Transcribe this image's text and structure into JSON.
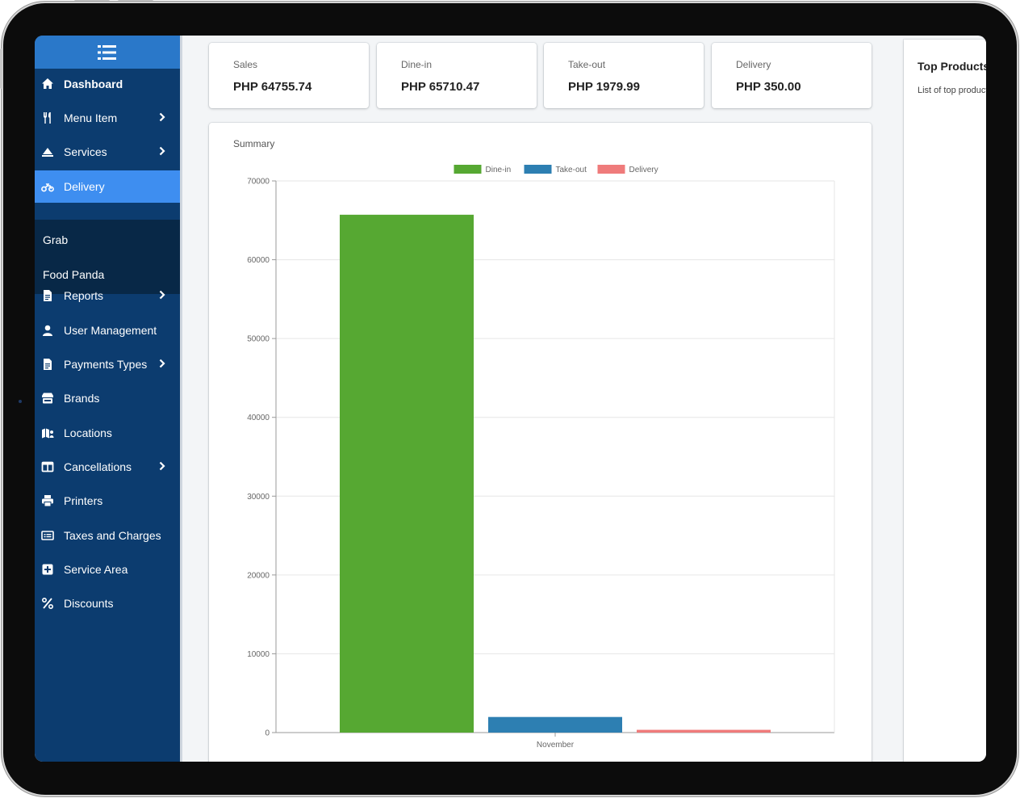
{
  "sidebar": {
    "items": [
      {
        "label": "Dashboard",
        "icon": "home-icon"
      },
      {
        "label": "Menu Item",
        "icon": "utensils-icon"
      },
      {
        "label": "Services",
        "icon": "services-icon"
      },
      {
        "label": "Delivery",
        "icon": "motorcycle-icon"
      },
      {
        "label": "Reports",
        "icon": "file-icon"
      },
      {
        "label": "User Management",
        "icon": "user-icon"
      },
      {
        "label": "Payments Types",
        "icon": "file-icon"
      },
      {
        "label": "Brands",
        "icon": "store-icon"
      },
      {
        "label": "Locations",
        "icon": "map-user-icon"
      },
      {
        "label": "Cancellations",
        "icon": "table-icon"
      },
      {
        "label": "Printers",
        "icon": "printer-icon"
      },
      {
        "label": "Taxes and Charges",
        "icon": "receipt-icon"
      },
      {
        "label": "Service Area",
        "icon": "plus-square-icon"
      },
      {
        "label": "Discounts",
        "icon": "percent-icon"
      }
    ],
    "delivery_submenu": [
      "Grab",
      "Food Panda"
    ]
  },
  "stats": [
    {
      "label": "Sales",
      "value": "PHP 64755.74"
    },
    {
      "label": "Dine-in",
      "value": "PHP 65710.47"
    },
    {
      "label": "Take-out",
      "value": "PHP 1979.99"
    },
    {
      "label": "Delivery",
      "value": "PHP 350.00"
    }
  ],
  "summary": {
    "title": "Summary"
  },
  "top_products": {
    "title": "Top Products",
    "subtitle": "List of top products"
  },
  "colors": {
    "sidebar": "#0c3c6f",
    "active": "#3e8ef0",
    "dine_in": "#56a832",
    "take_out": "#2d7fb2",
    "delivery": "#ef7b7b"
  },
  "chart_data": {
    "type": "bar",
    "categories": [
      "November"
    ],
    "series": [
      {
        "name": "Dine-in",
        "values": [
          65710.47
        ],
        "color": "#56a832"
      },
      {
        "name": "Take-out",
        "values": [
          1979.99
        ],
        "color": "#2d7fb2"
      },
      {
        "name": "Delivery",
        "values": [
          350.0
        ],
        "color": "#ef7b7b"
      }
    ],
    "ylim": [
      0,
      70000
    ],
    "yticks": [
      0,
      10000,
      20000,
      30000,
      40000,
      50000,
      60000,
      70000
    ],
    "grid": true,
    "legend": "top-center"
  }
}
